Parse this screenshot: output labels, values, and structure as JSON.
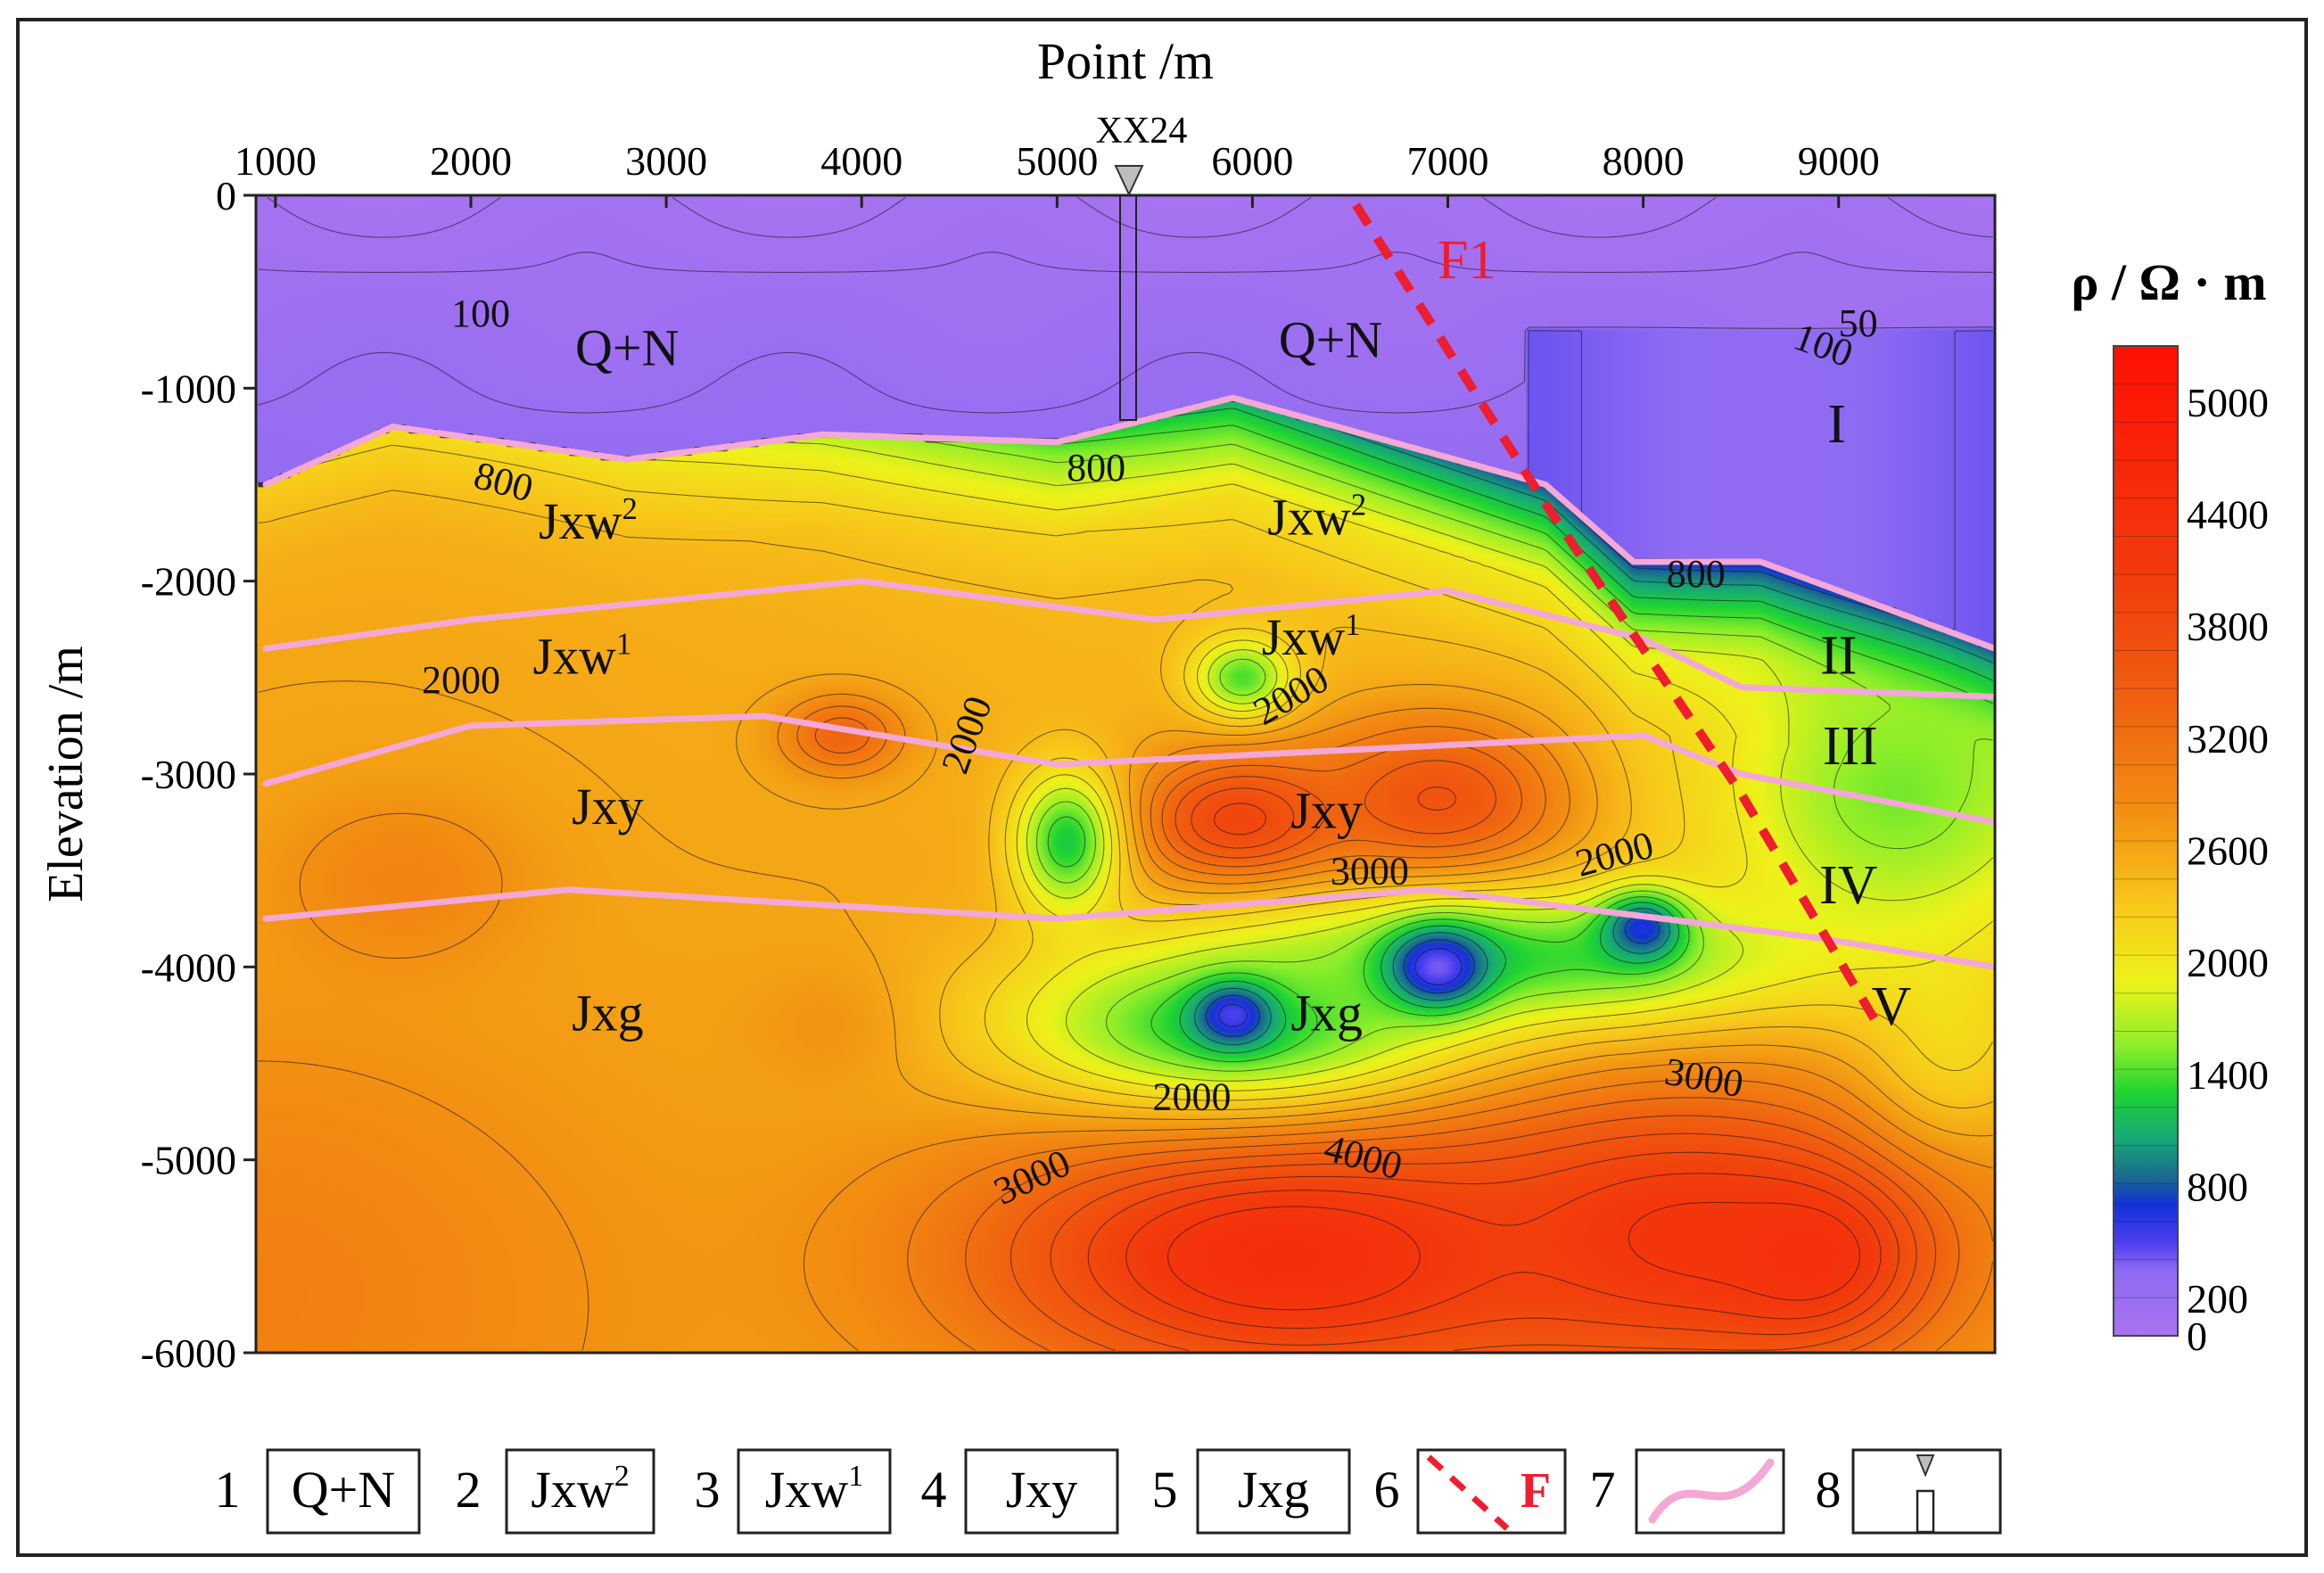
{
  "chart_data": {
    "type": "heatmap",
    "xlabel": "Point /m",
    "ylabel": "Elevation /m",
    "xlim": [
      900,
      9800
    ],
    "ylim": [
      -6000,
      0
    ],
    "xticks": [
      1000,
      2000,
      3000,
      4000,
      5000,
      6000,
      7000,
      8000,
      9000
    ],
    "xtick_labels": [
      "1000",
      "2000",
      "3000",
      "4000",
      "5000",
      "6000",
      "7000",
      "8000",
      "9000"
    ],
    "yticks": [
      0,
      -1000,
      -2000,
      -3000,
      -4000,
      -5000,
      -6000
    ],
    "ytick_labels": [
      "0",
      "-1000",
      "-2000",
      "-3000",
      "-4000",
      "-5000",
      "-6000"
    ],
    "colorbar": {
      "title": "ρ / Ω · m",
      "range": [
        0,
        5300
      ],
      "ticks": [
        5000,
        4400,
        3800,
        3200,
        2600,
        2000,
        1400,
        800,
        200,
        0
      ],
      "tick_labels": [
        "5000",
        "4400",
        "3800",
        "3200",
        "2600",
        "2000",
        "1400",
        "800",
        "200",
        "0"
      ],
      "stops": [
        {
          "value": 0,
          "color": "#a874f0"
        },
        {
          "value": 350,
          "color": "#8e6af2"
        },
        {
          "value": 500,
          "color": "#4d3ff0"
        },
        {
          "value": 700,
          "color": "#1230d8"
        },
        {
          "value": 850,
          "color": "#1a6a8e"
        },
        {
          "value": 1050,
          "color": "#17a878"
        },
        {
          "value": 1300,
          "color": "#1ed431"
        },
        {
          "value": 1550,
          "color": "#8cee2a"
        },
        {
          "value": 1900,
          "color": "#eef21a"
        },
        {
          "value": 2300,
          "color": "#f8c81a"
        },
        {
          "value": 2800,
          "color": "#f29012"
        },
        {
          "value": 3400,
          "color": "#f06010"
        },
        {
          "value": 4100,
          "color": "#f23a0c"
        },
        {
          "value": 5300,
          "color": "#ff1005"
        }
      ]
    },
    "well": {
      "label": "XX24",
      "x": 5500
    },
    "fault": {
      "label": "F1",
      "x": [
        6530,
        7500,
        8000,
        8500,
        9200
      ],
      "y": [
        -50,
        -1600,
        -2350,
        -3100,
        -4300
      ]
    },
    "boundaries": [
      {
        "x": [
          950,
          1600,
          2800,
          3800,
          5000,
          5900,
          7500,
          7950,
          8600,
          9800
        ],
        "y": [
          -1500,
          -1200,
          -1370,
          -1240,
          -1280,
          -1050,
          -1500,
          -1900,
          -1900,
          -2350
        ]
      },
      {
        "x": [
          950,
          2000,
          4000,
          5500,
          7000,
          8000,
          8500,
          9800
        ],
        "y": [
          -2350,
          -2200,
          -2000,
          -2200,
          -2050,
          -2300,
          -2550,
          -2600
        ]
      },
      {
        "x": [
          950,
          2000,
          3500,
          5000,
          6000,
          8000,
          8500,
          9800
        ],
        "y": [
          -3050,
          -2750,
          -2700,
          -2950,
          -2900,
          -2800,
          -3000,
          -3250
        ]
      },
      {
        "x": [
          950,
          2500,
          5000,
          6900,
          8900,
          9800
        ],
        "y": [
          -3750,
          -3600,
          -3750,
          -3600,
          -3850,
          -4000
        ]
      }
    ],
    "region_labels": [
      {
        "text": "Q+N",
        "x": 2800,
        "y": -880
      },
      {
        "text": "Q+N",
        "x": 6400,
        "y": -840
      },
      {
        "text": "Jxw",
        "sup": "2",
        "x": 2600,
        "y": -1780
      },
      {
        "text": "Jxw",
        "sup": "2",
        "x": 6330,
        "y": -1760
      },
      {
        "text": "Jxw",
        "sup": "1",
        "x": 2570,
        "y": -2480
      },
      {
        "text": "Jxw",
        "sup": "1",
        "x": 6300,
        "y": -2380
      },
      {
        "text": "Jxy",
        "x": 2700,
        "y": -3260
      },
      {
        "text": "Jxy",
        "x": 6380,
        "y": -3280
      },
      {
        "text": "Jxg",
        "x": 2700,
        "y": -4330
      },
      {
        "text": "Jxg",
        "x": 6380,
        "y": -4330
      }
    ],
    "zone_labels": [
      {
        "text": "I",
        "x": 8990,
        "y": -1280
      },
      {
        "text": "II",
        "x": 9000,
        "y": -2480
      },
      {
        "text": "III",
        "x": 9060,
        "y": -2950
      },
      {
        "text": "IV",
        "x": 9050,
        "y": -3670
      },
      {
        "text": "V",
        "x": 9270,
        "y": -4300
      }
    ],
    "contour_labels": [
      {
        "text": "100",
        "x": 2050,
        "y": -680,
        "angle": 0
      },
      {
        "text": "800",
        "x": 2150,
        "y": -1550,
        "angle": 15
      },
      {
        "text": "2000",
        "x": 1950,
        "y": -2580,
        "angle": 0
      },
      {
        "text": "2000",
        "x": 4600,
        "y": -2820,
        "angle": -70
      },
      {
        "text": "2000",
        "x": 6230,
        "y": -2650,
        "angle": -30
      },
      {
        "text": "800",
        "x": 5200,
        "y": -1480,
        "angle": 0
      },
      {
        "text": "3000",
        "x": 6600,
        "y": -3570,
        "angle": 0
      },
      {
        "text": "2000",
        "x": 7870,
        "y": -3480,
        "angle": -15
      },
      {
        "text": "800",
        "x": 8270,
        "y": -2030,
        "angle": 0
      },
      {
        "text": "50",
        "x": 9100,
        "y": -730,
        "angle": 0
      },
      {
        "text": "100",
        "x": 8900,
        "y": -840,
        "angle": 20
      },
      {
        "text": "2000",
        "x": 5690,
        "y": -4740,
        "angle": 0
      },
      {
        "text": "3000",
        "x": 8300,
        "y": -4640,
        "angle": 10
      },
      {
        "text": "3000",
        "x": 4900,
        "y": -5150,
        "angle": -25
      },
      {
        "text": "4000",
        "x": 6550,
        "y": -5050,
        "angle": 15
      }
    ],
    "anomalies": [
      {
        "x": 1200,
        "y": -2900,
        "sx": 5200,
        "sy": 3400,
        "v": 2600
      },
      {
        "x": 900,
        "y": -5700,
        "sx": 1800,
        "sy": 1400,
        "v": 3000
      },
      {
        "x": 1650,
        "y": -3550,
        "sx": 650,
        "sy": 450,
        "v": 2950
      },
      {
        "x": 3900,
        "y": -2800,
        "sx": 300,
        "sy": 200,
        "v": 3350
      },
      {
        "x": 3900,
        "y": -4300,
        "sx": 450,
        "sy": 300,
        "v": 2850
      },
      {
        "x": 5950,
        "y": -3250,
        "sx": 520,
        "sy": 330,
        "v": 3950
      },
      {
        "x": 6950,
        "y": -3150,
        "sx": 650,
        "sy": 450,
        "v": 3650
      },
      {
        "x": 6200,
        "y": -5500,
        "sx": 1500,
        "sy": 650,
        "v": 4500
      },
      {
        "x": 8200,
        "y": -5400,
        "sx": 1200,
        "sy": 700,
        "v": 4250
      },
      {
        "x": 8850,
        "y": -5500,
        "sx": 500,
        "sy": 400,
        "v": 4400
      },
      {
        "x": 9600,
        "y": -4400,
        "sx": 450,
        "sy": 500,
        "v": 2200
      },
      {
        "x": 5900,
        "y": -4300,
        "sx": 1200,
        "sy": 450,
        "v": 1250
      },
      {
        "x": 7400,
        "y": -3950,
        "sx": 1500,
        "sy": 380,
        "v": 1350
      },
      {
        "x": 5050,
        "y": -3350,
        "sx": 280,
        "sy": 380,
        "v": 1250
      },
      {
        "x": 5950,
        "y": -2500,
        "sx": 260,
        "sy": 210,
        "v": 1400
      },
      {
        "x": 5900,
        "y": -4250,
        "sx": 200,
        "sy": 160,
        "v": 500
      },
      {
        "x": 6950,
        "y": -4000,
        "sx": 260,
        "sy": 210,
        "v": 400
      },
      {
        "x": 8000,
        "y": -3800,
        "sx": 220,
        "sy": 180,
        "v": 600
      },
      {
        "x": 9300,
        "y": -3100,
        "sx": 900,
        "sy": 800,
        "v": 1500
      }
    ]
  },
  "legend": {
    "items": [
      {
        "num": "1",
        "text": "Q+N",
        "sup": ""
      },
      {
        "num": "2",
        "text": "Jxw",
        "sup": "2"
      },
      {
        "num": "3",
        "text": "Jxw",
        "sup": "1"
      },
      {
        "num": "4",
        "text": "Jxy",
        "sup": ""
      },
      {
        "num": "5",
        "text": "Jxg",
        "sup": ""
      },
      {
        "num": "6",
        "text": "F",
        "sup": ""
      },
      {
        "num": "7",
        "text": "",
        "sup": ""
      },
      {
        "num": "8",
        "text": "",
        "sup": ""
      }
    ]
  },
  "colors": {
    "fault": "#ee1d2f",
    "boundary": "#f4a8d6",
    "well_marker": "#bdbdbd"
  }
}
